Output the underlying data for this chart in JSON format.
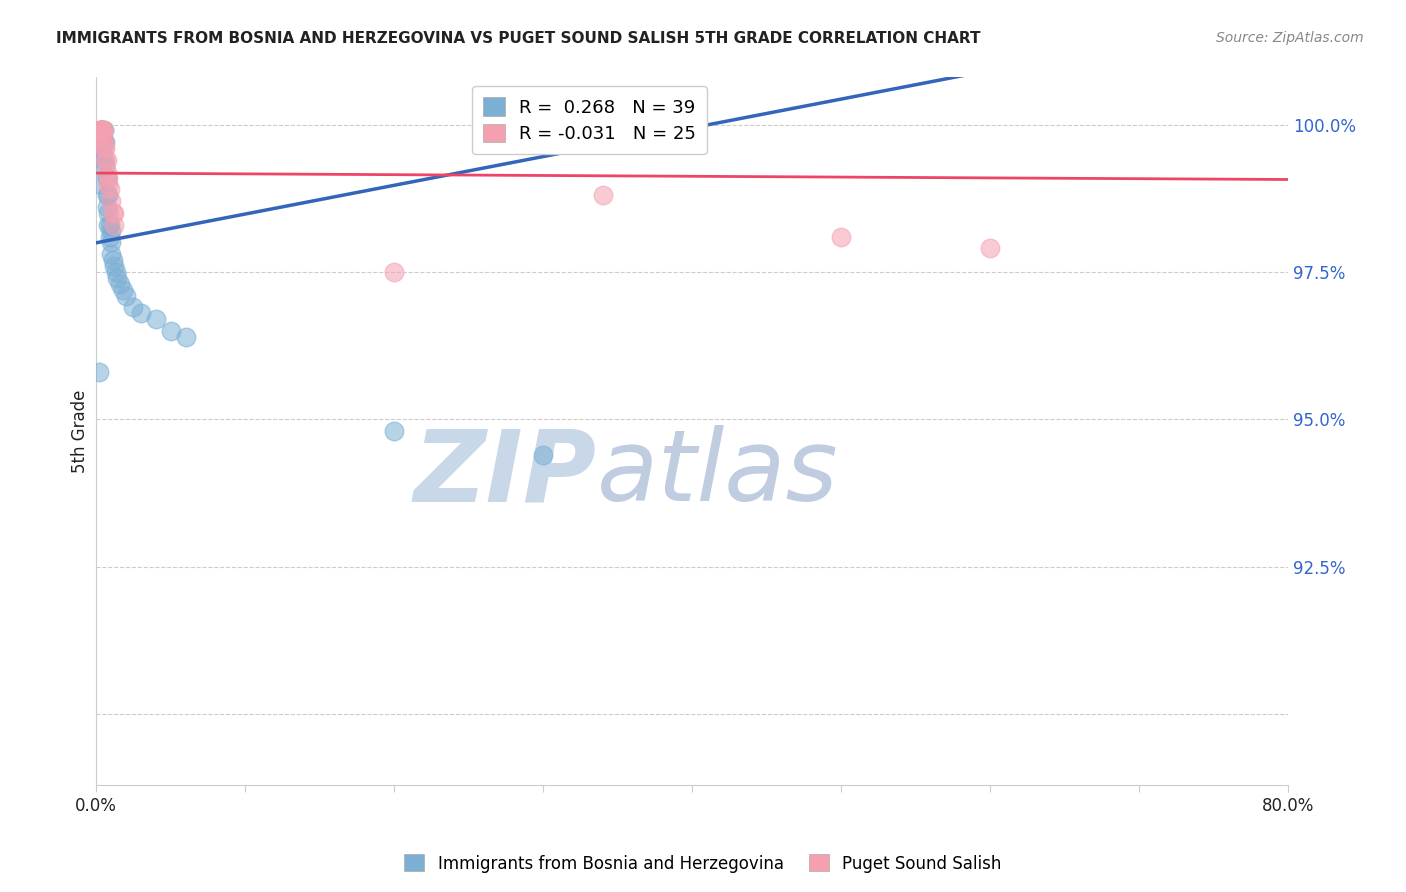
{
  "title": "IMMIGRANTS FROM BOSNIA AND HERZEGOVINA VS PUGET SOUND SALISH 5TH GRADE CORRELATION CHART",
  "source": "Source: ZipAtlas.com",
  "ylabel": "5th Grade",
  "xlim": [
    0.0,
    0.8
  ],
  "ylim": [
    0.888,
    1.008
  ],
  "yticks": [
    0.9,
    0.925,
    0.95,
    0.975,
    1.0
  ],
  "ytick_labels": [
    "",
    "92.5%",
    "95.0%",
    "97.5%",
    "100.0%"
  ],
  "xticks": [
    0.0,
    0.1,
    0.2,
    0.3,
    0.4,
    0.5,
    0.6,
    0.7,
    0.8
  ],
  "xtick_labels": [
    "0.0%",
    "",
    "",
    "",
    "",
    "",
    "",
    "",
    "80.0%"
  ],
  "blue_color": "#7BAFD4",
  "pink_color": "#F4A0B0",
  "blue_line_color": "#3366BB",
  "pink_line_color": "#EE4466",
  "R_blue": 0.268,
  "N_blue": 39,
  "R_pink": -0.031,
  "N_pink": 25,
  "blue_x": [
    0.002,
    0.003,
    0.003,
    0.004,
    0.004,
    0.005,
    0.005,
    0.005,
    0.006,
    0.006,
    0.007,
    0.007,
    0.007,
    0.008,
    0.008,
    0.008,
    0.009,
    0.009,
    0.01,
    0.01,
    0.01,
    0.011,
    0.012,
    0.013,
    0.014,
    0.016,
    0.018,
    0.02,
    0.025,
    0.03,
    0.002,
    0.2,
    0.3,
    0.04,
    0.05,
    0.06,
    0.003,
    0.004,
    0.38
  ],
  "blue_y": [
    0.99,
    0.999,
    0.996,
    0.999,
    0.995,
    0.999,
    0.997,
    0.994,
    0.997,
    0.993,
    0.991,
    0.988,
    0.986,
    0.988,
    0.985,
    0.983,
    0.983,
    0.981,
    0.982,
    0.98,
    0.978,
    0.977,
    0.976,
    0.975,
    0.974,
    0.973,
    0.972,
    0.971,
    0.969,
    0.968,
    0.958,
    0.948,
    0.944,
    0.967,
    0.965,
    0.964,
    0.999,
    0.999,
    1.0
  ],
  "pink_x": [
    0.002,
    0.003,
    0.004,
    0.004,
    0.005,
    0.005,
    0.006,
    0.007,
    0.007,
    0.008,
    0.009,
    0.01,
    0.011,
    0.012,
    0.003,
    0.004,
    0.003,
    0.005,
    0.006,
    0.008,
    0.012,
    0.2,
    0.34,
    0.5,
    0.6
  ],
  "pink_y": [
    0.999,
    0.999,
    0.999,
    0.998,
    0.999,
    0.997,
    0.996,
    0.994,
    0.992,
    0.99,
    0.989,
    0.987,
    0.985,
    0.983,
    0.999,
    0.999,
    0.998,
    0.996,
    0.994,
    0.991,
    0.985,
    0.975,
    0.988,
    0.981,
    0.979
  ],
  "watermark_zip": "ZIP",
  "watermark_atlas": "atlas",
  "watermark_color_zip": "#C8D8E8",
  "watermark_color_atlas": "#C0CCE0",
  "background_color": "#FFFFFF"
}
